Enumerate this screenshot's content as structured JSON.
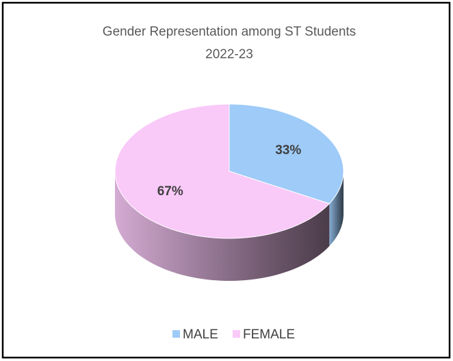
{
  "chart_data": {
    "type": "pie",
    "title": "Gender Representation among ST Students",
    "subtitle": "2022-23",
    "categories": [
      "MALE",
      "FEMALE"
    ],
    "values": [
      33,
      67
    ],
    "value_labels": [
      "33%",
      "67%"
    ],
    "colors": [
      "#9ecbf8",
      "#f9c9f8"
    ],
    "legend": "bottom"
  }
}
